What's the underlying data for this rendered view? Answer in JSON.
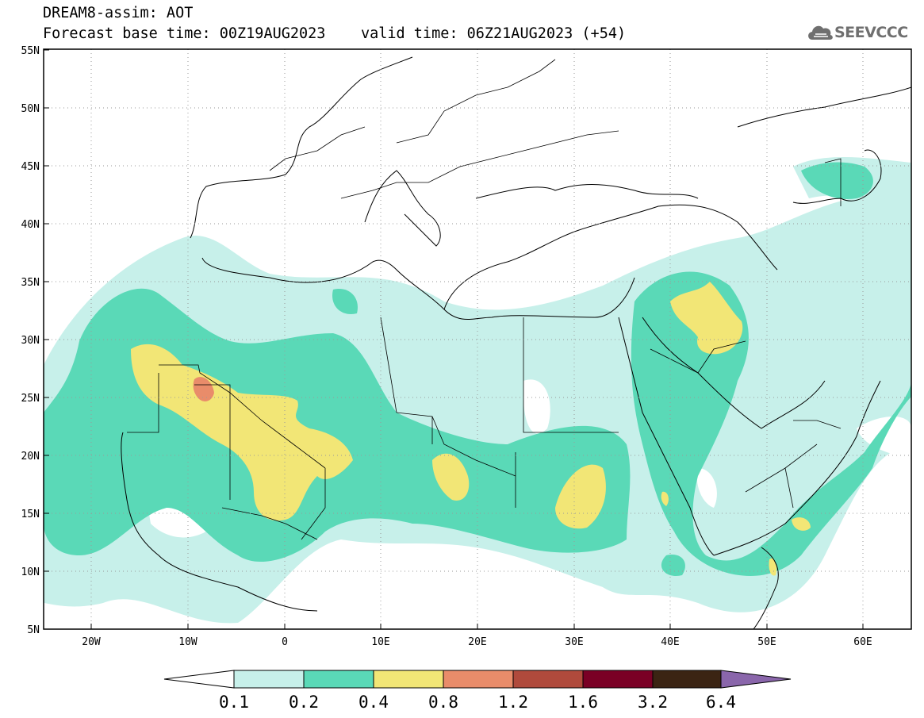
{
  "title": {
    "line1": "DREAM8-assim: AOT",
    "line2": "Forecast base time: 00Z19AUG2023    valid time: 06Z21AUG2023 (+54)"
  },
  "logo": {
    "text": "SEEVCCC",
    "icon": "cloud-icon",
    "color": "#6f6f6f"
  },
  "axes": {
    "lat_labels": [
      "55N",
      "50N",
      "45N",
      "40N",
      "35N",
      "30N",
      "25N",
      "20N",
      "15N",
      "10N",
      "5N"
    ],
    "lon_labels": [
      "20W",
      "10W",
      "0",
      "10E",
      "20E",
      "30E",
      "40E",
      "50E",
      "60E"
    ]
  },
  "colorbar": {
    "ticks": [
      "0.1",
      "0.2",
      "0.4",
      "0.8",
      "1.2",
      "1.6",
      "3.2",
      "6.4"
    ],
    "colors": [
      "#ffffff",
      "#c7f0ea",
      "#5ad9b7",
      "#f2e676",
      "#e98c6a",
      "#b04a3c",
      "#7a0025",
      "#3b2413",
      "#8a66ab"
    ]
  },
  "map": {
    "land_outline_color": "#000000",
    "grid": "dotted",
    "region_colors": {
      "light": "#c7f0ea",
      "mid": "#5ad9b7",
      "high": "#f2e676",
      "very_high": "#e98c6a"
    }
  }
}
